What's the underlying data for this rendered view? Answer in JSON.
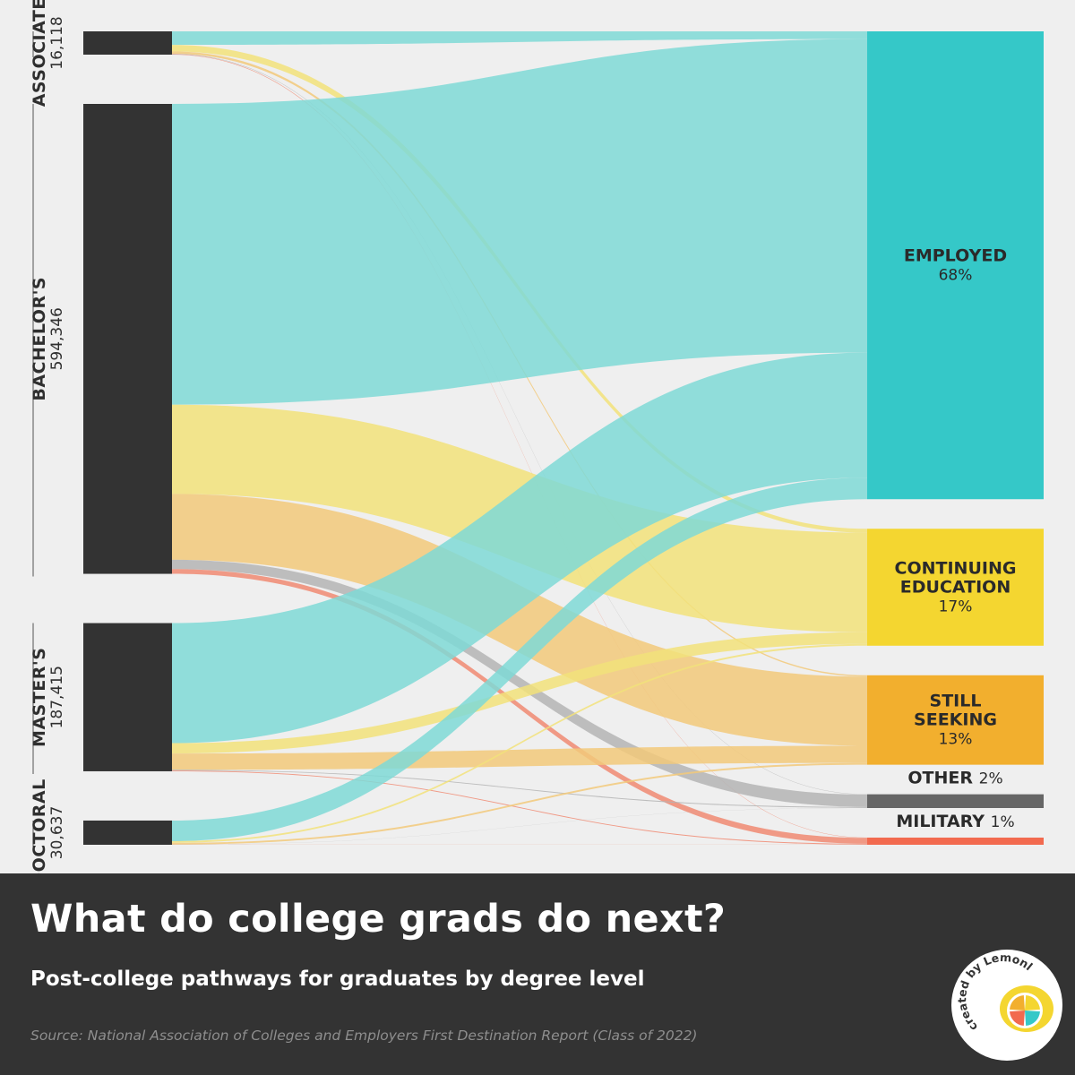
{
  "chart_data": {
    "type": "sankey",
    "title": "What do college grads do next?",
    "subtitle": "Post-college pathways for graduates by degree level",
    "source": "Source: National Association of Colleges and Employers First Destination Report (Class of 2022)",
    "sources": [
      {
        "id": "associates",
        "label": "ASSOCIATE'S",
        "count_label": "16,118",
        "count": 16118
      },
      {
        "id": "bachelors",
        "label": "BACHELOR'S",
        "count_label": "594,346",
        "count": 594346
      },
      {
        "id": "masters",
        "label": "MASTER'S",
        "count_label": "187,415",
        "count": 187415
      },
      {
        "id": "doctoral",
        "label": "DOCTORAL",
        "count_label": "30,637",
        "count": 30637
      }
    ],
    "destinations": [
      {
        "id": "employed",
        "label_lines": [
          "EMPLOYED"
        ],
        "pct_label": "68%",
        "pct": 68,
        "color": "#35c8c8"
      },
      {
        "id": "continuing",
        "label_lines": [
          "CONTINUING",
          "EDUCATION"
        ],
        "pct_label": "17%",
        "pct": 17,
        "color": "#f4d630"
      },
      {
        "id": "seeking",
        "label_lines": [
          "STILL",
          "SEEKING"
        ],
        "pct_label": "13%",
        "pct": 13,
        "color": "#f2af2e"
      },
      {
        "id": "other",
        "label_lines": [
          "OTHER"
        ],
        "pct_label": "2%",
        "pct": 2,
        "color": "#666666"
      },
      {
        "id": "military",
        "label_lines": [
          "MILITARY"
        ],
        "pct_label": "1%",
        "pct": 1,
        "color": "#f26a4f"
      }
    ],
    "flow_colors": {
      "employed": "#7fd9d6",
      "continuing": "#f2e27a",
      "seeking": "#f2c97a",
      "other": "#b4b4b4",
      "military": "#f08a72"
    },
    "source_bar_color": "#333333",
    "flows": [
      {
        "from": "associates",
        "to": "employed",
        "pct": 58
      },
      {
        "from": "associates",
        "to": "continuing",
        "pct": 28
      },
      {
        "from": "associates",
        "to": "seeking",
        "pct": 10
      },
      {
        "from": "associates",
        "to": "other",
        "pct": 2
      },
      {
        "from": "associates",
        "to": "military",
        "pct": 2
      },
      {
        "from": "bachelors",
        "to": "employed",
        "pct": 64
      },
      {
        "from": "bachelors",
        "to": "continuing",
        "pct": 19
      },
      {
        "from": "bachelors",
        "to": "seeking",
        "pct": 14
      },
      {
        "from": "bachelors",
        "to": "other",
        "pct": 2
      },
      {
        "from": "bachelors",
        "to": "military",
        "pct": 1
      },
      {
        "from": "masters",
        "to": "employed",
        "pct": 81
      },
      {
        "from": "masters",
        "to": "continuing",
        "pct": 7
      },
      {
        "from": "masters",
        "to": "seeking",
        "pct": 11
      },
      {
        "from": "masters",
        "to": "other",
        "pct": 0.5
      },
      {
        "from": "masters",
        "to": "military",
        "pct": 0.5
      },
      {
        "from": "doctoral",
        "to": "employed",
        "pct": 85
      },
      {
        "from": "doctoral",
        "to": "continuing",
        "pct": 7
      },
      {
        "from": "doctoral",
        "to": "seeking",
        "pct": 7
      },
      {
        "from": "doctoral",
        "to": "other",
        "pct": 0.5
      },
      {
        "from": "doctoral",
        "to": "military",
        "pct": 0.5
      }
    ]
  },
  "badge": {
    "text": "created by Lemonly",
    "colors": [
      "#f4d630",
      "#35c8c8",
      "#f26a4f",
      "#f2af2e"
    ]
  }
}
